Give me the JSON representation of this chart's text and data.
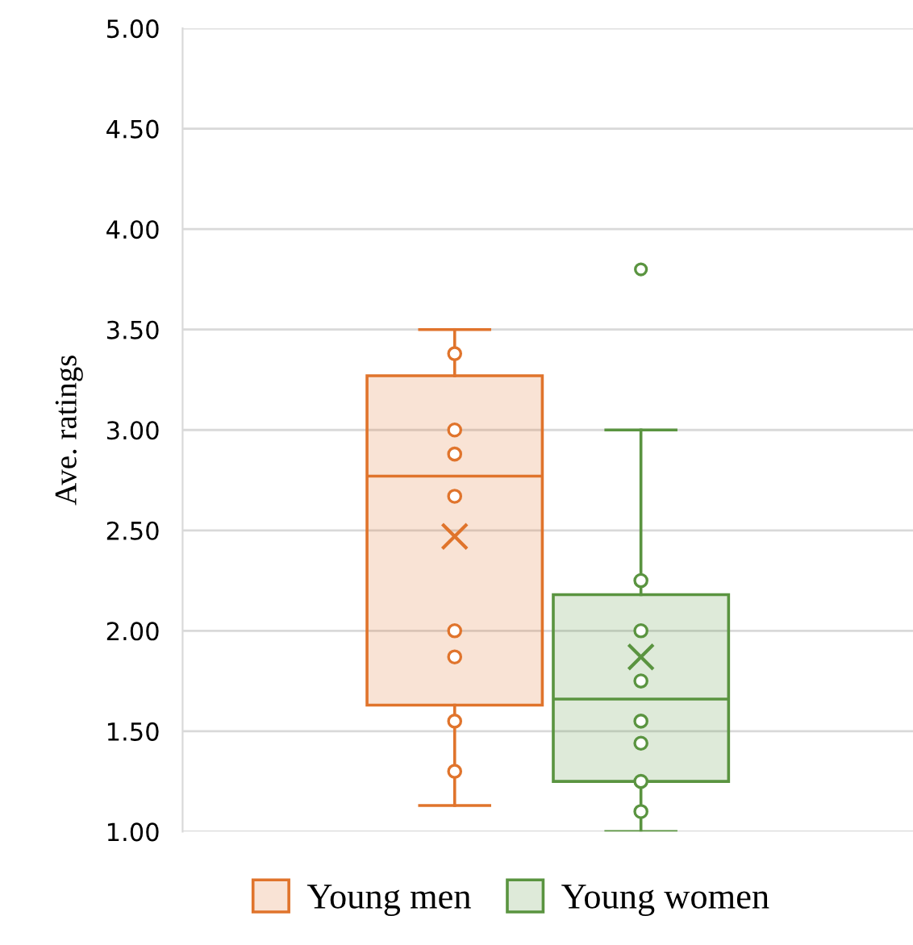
{
  "chart_data": {
    "type": "box",
    "ylabel": "Ave. ratings",
    "categories": [
      null
    ],
    "series": [
      {
        "name": "Young men",
        "color": "#e0742c",
        "boxes": [
          {
            "low": 1.13,
            "q1": 1.63,
            "median": 2.77,
            "q3": 3.27,
            "high": 3.5,
            "mean": 2.47
          }
        ]
      },
      {
        "name": "Young women",
        "color": "#5a9440",
        "boxes": [
          {
            "low": 1.0,
            "q1": 1.25,
            "median": 1.66,
            "q3": 2.18,
            "high": 3.0,
            "mean": 1.87,
            "outliers": [
              3.8
            ]
          }
        ]
      },
      {
        "type": "scatter",
        "color": "#e0742c",
        "marker": "circle",
        "x": [
          null,
          null,
          null,
          null,
          null,
          null,
          null,
          null
        ],
        "values": [
          3.38,
          3.0,
          2.88,
          2.67,
          2.0,
          1.87,
          1.55,
          1.3
        ]
      },
      {
        "type": "scatter",
        "color": "#5a9440",
        "marker": "circle",
        "x": [
          null,
          null,
          null,
          null,
          null,
          null,
          null
        ],
        "values": [
          2.25,
          2.0,
          1.75,
          1.55,
          1.44,
          1.25,
          1.1
        ]
      }
    ],
    "ylim": [
      1,
      5
    ],
    "yticks": [
      {
        "value": 1,
        "label": "1.00"
      },
      {
        "value": 1.5,
        "label": "1.50"
      },
      {
        "value": 2,
        "label": "2.00"
      },
      {
        "value": 2.5,
        "label": "2.50"
      },
      {
        "value": 3,
        "label": "3.00"
      },
      {
        "value": 3.5,
        "label": "3.50"
      },
      {
        "value": 4,
        "label": "4.00"
      },
      {
        "value": 4.5,
        "label": "4.50"
      },
      {
        "value": 5,
        "label": "5.00"
      }
    ],
    "grid": "y",
    "legend": "bottom",
    "tick_labels": "y"
  }
}
